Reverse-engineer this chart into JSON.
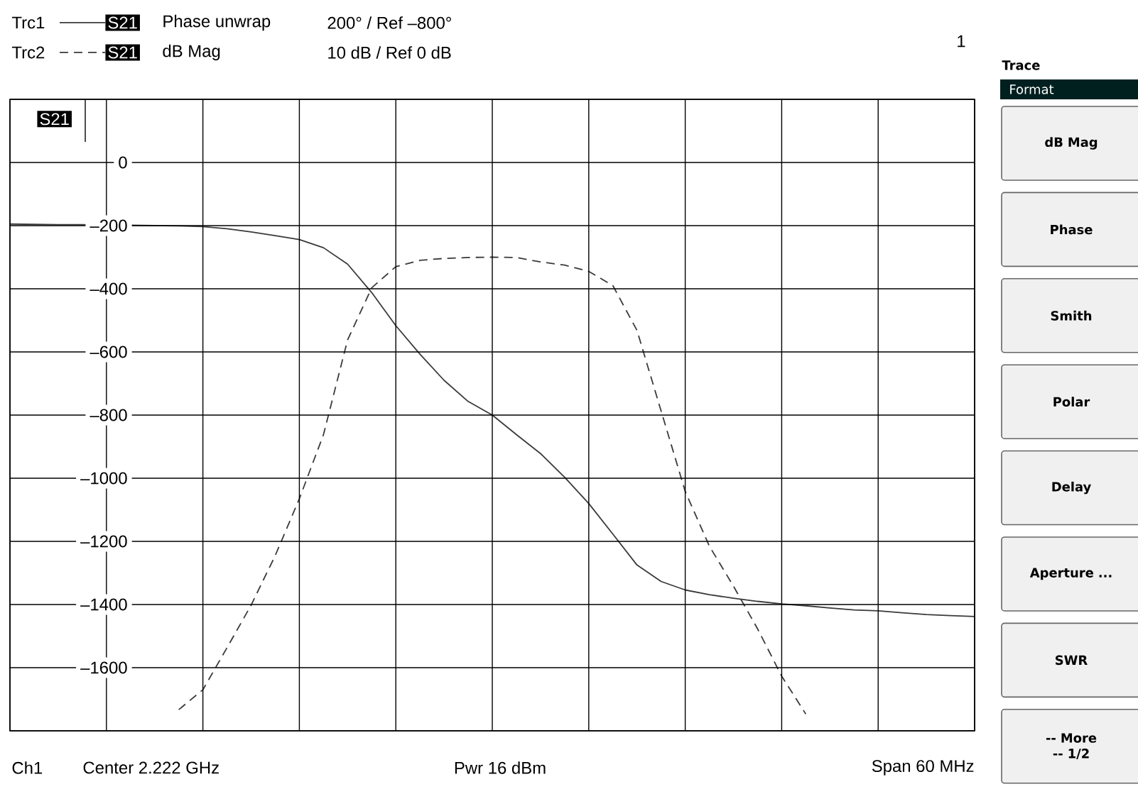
{
  "chart_data": {
    "type": "line",
    "categories": [
      null,
      null,
      null,
      null,
      null,
      null,
      null,
      null,
      null,
      null,
      null,
      null,
      null,
      null,
      null,
      null,
      null,
      null,
      null,
      null,
      null,
      null,
      null,
      null,
      null,
      null,
      null,
      null,
      null,
      null,
      null,
      null,
      null,
      null,
      null,
      null,
      null,
      null,
      null,
      null,
      null
    ],
    "series": [
      {
        "name": "Trc1",
        "color": "#3a3a3a",
        "line_style": "solid",
        "values": [
          -195,
          -196,
          -197,
          -197,
          -198,
          -199,
          -200,
          -201,
          -203,
          -210,
          -220,
          -232,
          -244,
          -270,
          -322,
          -412,
          -517,
          -607,
          -690,
          -757,
          -800,
          -862,
          -922,
          -997,
          -1080,
          -1177,
          -1275,
          -1327,
          -1354,
          -1369,
          -1380,
          -1390,
          -1398,
          -1404,
          -1411,
          -1417,
          -1420,
          -1426,
          -1432,
          -1435,
          -1438
        ]
      },
      {
        "name": "Trc2",
        "color": "#3a3a3a",
        "line_style": "dashed",
        "values": [
          null,
          null,
          null,
          null,
          null,
          null,
          null,
          -1733,
          -1670,
          -1537,
          -1402,
          -1245,
          -1065,
          -862,
          -562,
          -397,
          -330,
          -310,
          -304,
          -301,
          -300,
          -301,
          -315,
          -325,
          -345,
          -390,
          -532,
          -787,
          -1042,
          -1215,
          -1342,
          -1477,
          -1627,
          -1747,
          null,
          null,
          null,
          null,
          null,
          null,
          null
        ]
      }
    ],
    "ylim": [
      -1800,
      200
    ],
    "yticks": [
      {
        "value": 200,
        "label": null
      },
      0,
      {
        "value": -200,
        "label": "–200"
      },
      {
        "value": -400,
        "label": "–400"
      },
      {
        "value": -600,
        "label": "–600"
      },
      {
        "value": -800,
        "label": "–800"
      },
      {
        "value": -1000,
        "label": "–1000"
      },
      {
        "value": -1200,
        "label": "–1200"
      },
      {
        "value": -1400,
        "label": "–1400"
      },
      {
        "value": -1600,
        "label": "–1600"
      },
      {
        "value": -1800,
        "label": null
      }
    ],
    "tick_labels": "y",
    "grid": true,
    "legend": "top left",
    "annotations": [
      "S21",
      "Phase unwrap",
      "200° / Ref –800°",
      "S21",
      "dB Mag",
      "10 dB / Ref 0 dB",
      "1",
      "S21",
      "Ch1",
      "Center 2.222 GHz",
      "Pwr 16 dBm",
      "Span 60 MHz",
      "Trace",
      "Format",
      "dB Mag",
      "Phase",
      "Smith",
      "Polar",
      "Delay",
      "Aperture ...",
      "SWR",
      "-- More -- 1/2"
    ]
  }
}
